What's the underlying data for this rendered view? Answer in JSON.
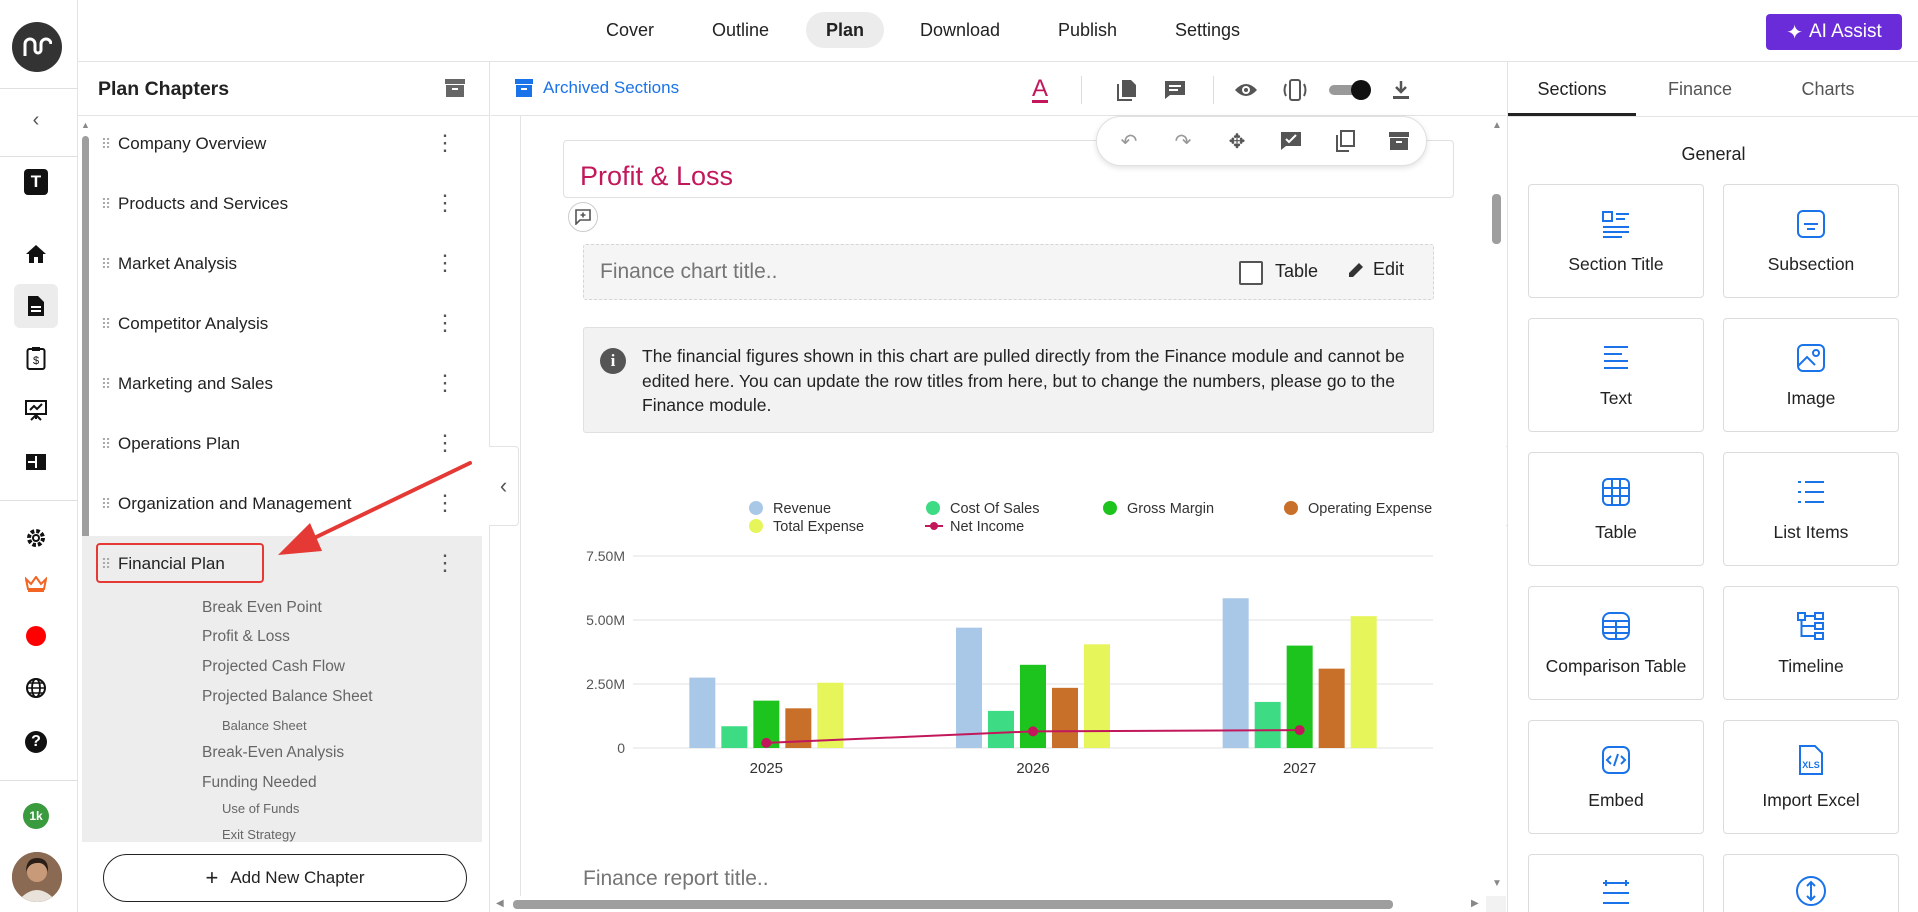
{
  "nav": {
    "tabs": [
      "Cover",
      "Outline",
      "Plan",
      "Download",
      "Publish",
      "Settings"
    ],
    "active": "Plan",
    "ai_label": "AI Assist"
  },
  "rail": {
    "t_label": "T",
    "badge": "1k"
  },
  "chapters": {
    "title": "Plan Chapters",
    "items": [
      "Company Overview",
      "Products and Services",
      "Market Analysis",
      "Competitor Analysis",
      "Marketing and Sales",
      "Operations Plan",
      "Organization and Management",
      "Financial Plan"
    ],
    "sub_items": [
      "Break Even Point",
      "Profit & Loss",
      "Projected Cash Flow",
      "Projected Balance Sheet",
      "Balance Sheet",
      "Break-Even Analysis",
      "Funding Needed",
      "Use of Funds",
      "Exit Strategy"
    ],
    "add_label": "Add New Chapter"
  },
  "editor": {
    "archived_label": "Archived Sections",
    "section_title": "Profit & Loss",
    "chart_title_placeholder": "Finance chart title..",
    "table_label": "Table",
    "edit_label": "Edit",
    "info_text": "The financial figures shown in this chart are pulled directly from the Finance module and cannot be edited here. You can update the row titles from here, but to change the numbers, please go to the Finance module.",
    "report_title_placeholder": "Finance report title.."
  },
  "chart_data": {
    "type": "bar",
    "categories": [
      "2025",
      "2026",
      "2027"
    ],
    "series": [
      {
        "name": "Revenue",
        "color": "#a9c8e8",
        "values": [
          2750000,
          4700000,
          5850000
        ]
      },
      {
        "name": "Cost Of Sales",
        "color": "#3ddc84",
        "values": [
          850000,
          1450000,
          1800000
        ]
      },
      {
        "name": "Gross Margin",
        "color": "#1ec41e",
        "values": [
          1850000,
          3250000,
          4000000
        ]
      },
      {
        "name": "Operating Expense",
        "color": "#c8702a",
        "values": [
          1550000,
          2350000,
          3100000
        ]
      },
      {
        "name": "Total Expense",
        "color": "#e6f55a",
        "values": [
          2550000,
          4050000,
          5150000
        ]
      },
      {
        "name": "Net Income",
        "color": "#c2185b",
        "type": "line",
        "values": [
          200000,
          650000,
          700000
        ]
      }
    ],
    "yticks": [
      "7.50M",
      "5.00M",
      "2.50M",
      "0"
    ],
    "ylim": [
      0,
      7500000
    ],
    "legend_position": "top"
  },
  "right_panel": {
    "tabs": [
      "Sections",
      "Finance",
      "Charts"
    ],
    "active": "Sections",
    "group_title": "General",
    "cards": [
      "Section Title",
      "Subsection",
      "Text",
      "Image",
      "Table",
      "List Items",
      "Comparison Table",
      "Timeline",
      "Embed",
      "Import Excel"
    ],
    "accent": "#1a73e8"
  }
}
